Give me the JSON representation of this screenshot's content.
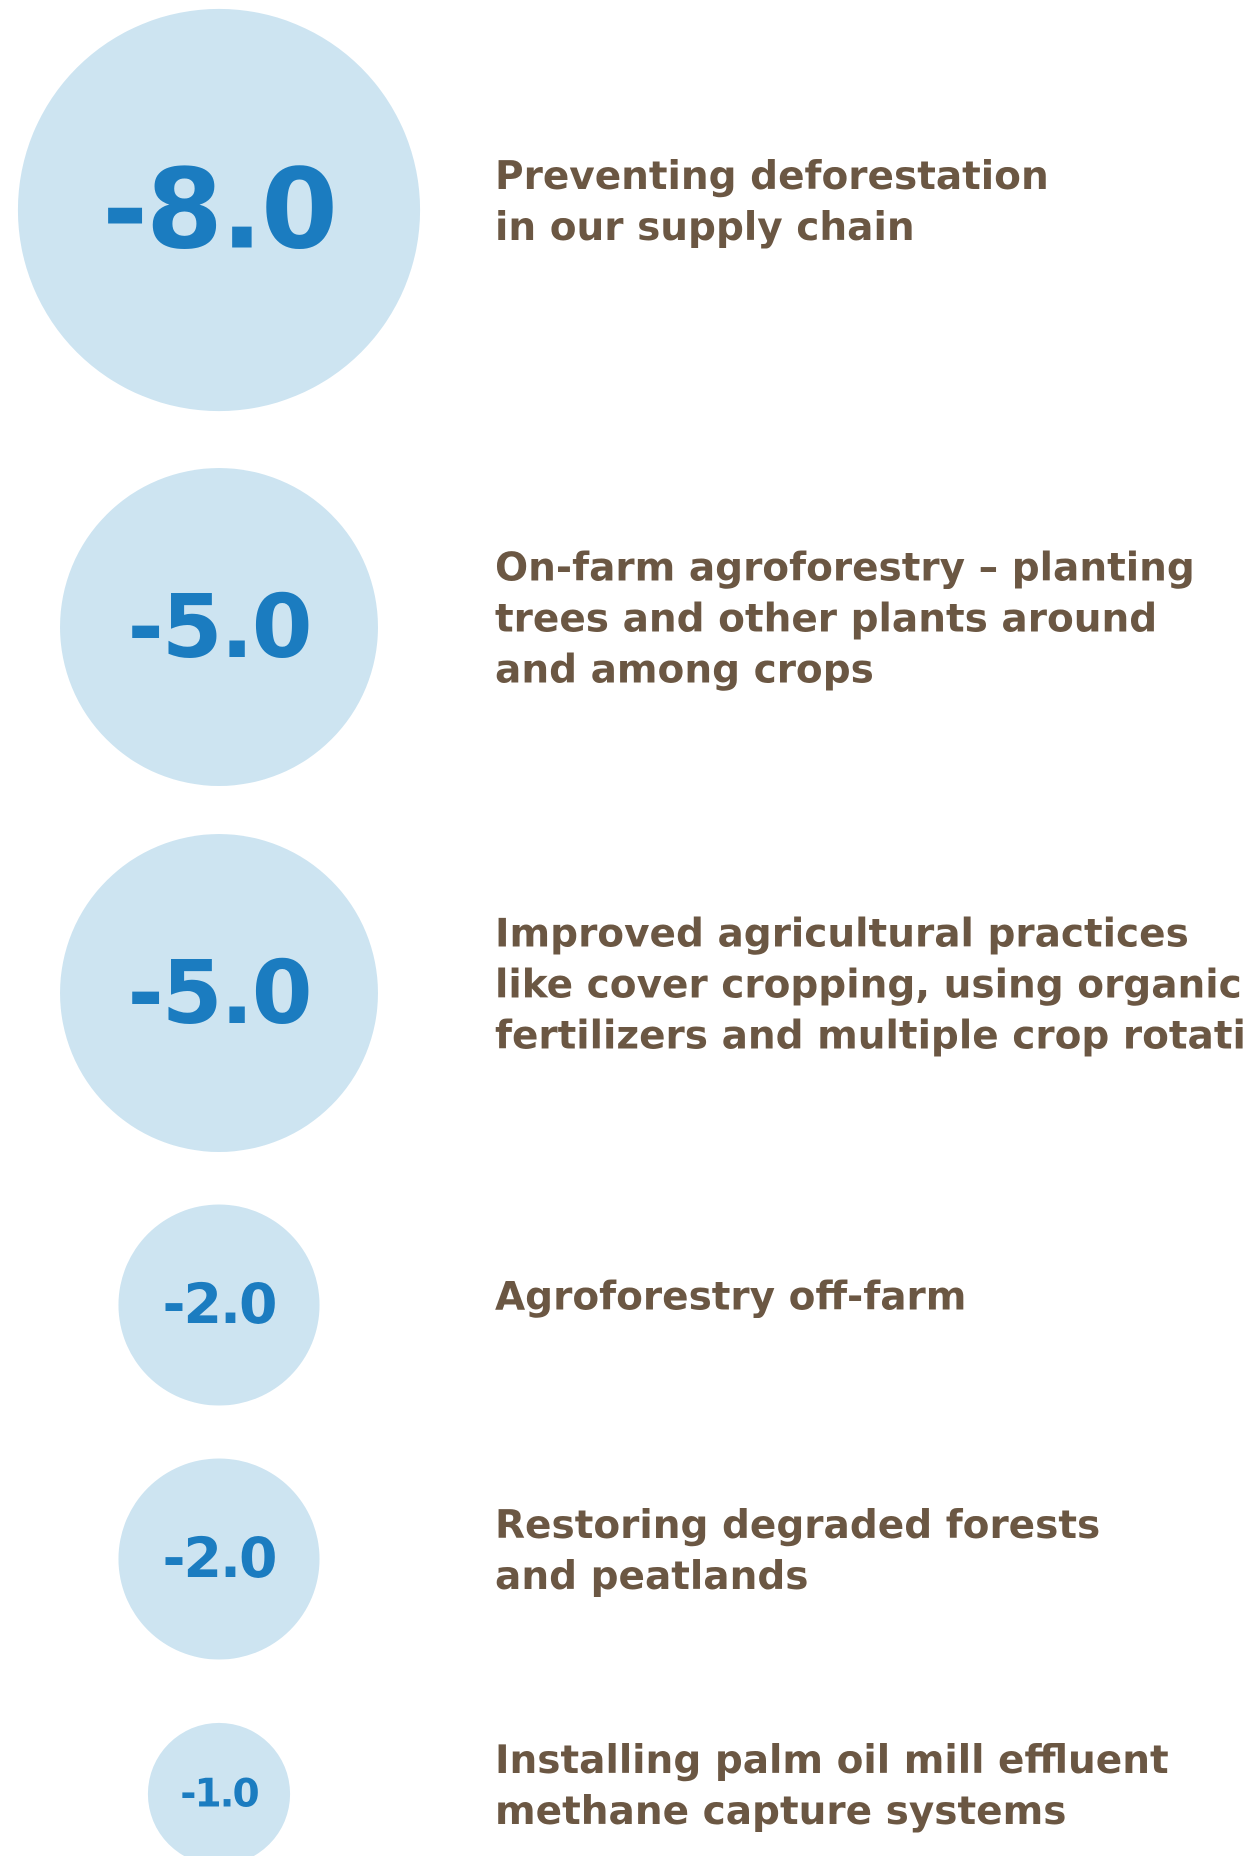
{
  "chart_data": {
    "type": "bubble",
    "categories": [
      [
        "Preventing deforestation",
        "in our supply chain"
      ],
      [
        "On-farm agroforestry – planting",
        "trees and other plants around",
        "and among crops"
      ],
      [
        "Improved agricultural practices",
        "like cover cropping, using organic",
        "fertilizers and multiple crop rotation"
      ],
      [
        "Agroforestry off-farm"
      ],
      [
        "Restoring degraded forests",
        "and peatlands"
      ],
      [
        "Installing palm oil mill effluent",
        "methane capture systems"
      ]
    ],
    "values": [
      -8,
      -5,
      -5,
      -2,
      -2,
      -1
    ],
    "value_labels": [
      "-8.0",
      "-5.0",
      "-5.0",
      "-2.0",
      "-2.0",
      "-1.0"
    ],
    "color": "#cde4f1"
  }
}
